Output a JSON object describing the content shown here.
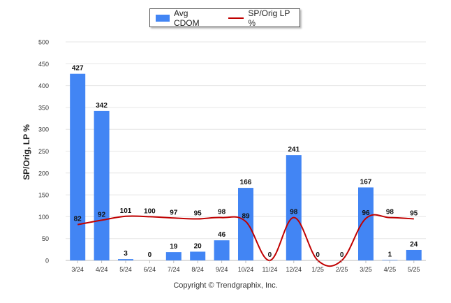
{
  "legend": {
    "bar_label": "Avg CDOM",
    "line_label": "SP/Orig LP %"
  },
  "ylabel": "SP/Orig, LP %",
  "copyright": "Copyright © Trendgraphix, Inc.",
  "colors": {
    "bar": "#4285f4",
    "line": "#c00000",
    "grid": "#e6e6e6"
  },
  "chart_data": {
    "type": "bar",
    "categories": [
      "3/24",
      "4/24",
      "5/24",
      "6/24",
      "7/24",
      "8/24",
      "9/24",
      "10/24",
      "11/24",
      "12/24",
      "1/25",
      "2/25",
      "3/25",
      "4/25",
      "5/25"
    ],
    "ylim": [
      0,
      500
    ],
    "yticks": [
      0,
      50,
      100,
      150,
      200,
      250,
      300,
      350,
      400,
      450,
      500
    ],
    "ylabel": "SP/Orig, LP %",
    "legend_position": "top",
    "grid": true,
    "series": [
      {
        "name": "Avg CDOM",
        "type": "bar",
        "values": [
          427,
          342,
          3,
          0,
          19,
          20,
          46,
          166,
          0,
          241,
          0,
          0,
          167,
          1,
          24
        ]
      },
      {
        "name": "SP/Orig LP %",
        "type": "line",
        "values": [
          82,
          92,
          101,
          100,
          97,
          95,
          98,
          89,
          0,
          98,
          0,
          0,
          96,
          98,
          95
        ]
      }
    ]
  }
}
